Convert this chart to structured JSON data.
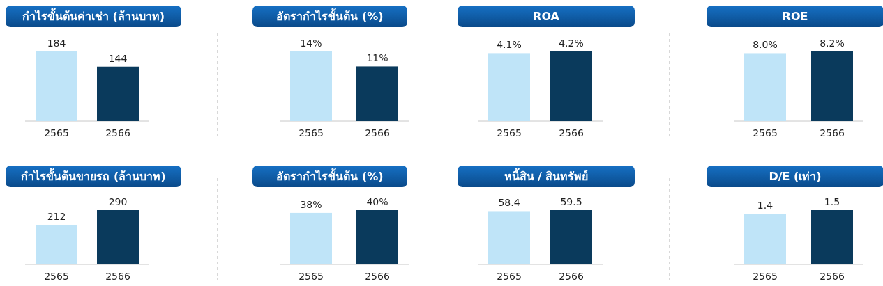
{
  "chart_data": [
    {
      "type": "bar",
      "title": "กำไรขั้นต้นค่าเช่า (ล้านบาท)",
      "categories": [
        "2565",
        "2566"
      ],
      "values": [
        184,
        144
      ],
      "colors": [
        "#bfe4f8",
        "#0a3a5c"
      ],
      "data_labels": true
    },
    {
      "type": "bar",
      "title": "อัตรากำไรขั้นต้น (%)",
      "categories": [
        "2565",
        "2566"
      ],
      "values": [
        14,
        11
      ],
      "colors": [
        "#bfe4f8",
        "#0a3a5c"
      ],
      "value_labels": [
        "14%",
        "11%"
      ]
    },
    {
      "type": "bar",
      "title": "ROA",
      "categories": [
        "2565",
        "2566"
      ],
      "values": [
        4.1,
        4.2
      ],
      "colors": [
        "#bfe4f8",
        "#0a3a5c"
      ],
      "value_labels": [
        "4.1%",
        "4.2%"
      ]
    },
    {
      "type": "bar",
      "title": "ROE",
      "categories": [
        "2565",
        "2566"
      ],
      "values": [
        8.0,
        8.2
      ],
      "colors": [
        "#bfe4f8",
        "#0a3a5c"
      ],
      "value_labels": [
        "8.0%",
        "8.2%"
      ]
    },
    {
      "type": "bar",
      "title": "กำไรขั้นต้นขายรถ (ล้านบาท)",
      "categories": [
        "2565",
        "2566"
      ],
      "values": [
        212,
        290
      ],
      "colors": [
        "#bfe4f8",
        "#0a3a5c"
      ],
      "data_labels": true
    },
    {
      "type": "bar",
      "title": "อัตรากำไรขั้นต้น (%)",
      "categories": [
        "2565",
        "2566"
      ],
      "values": [
        38,
        40
      ],
      "colors": [
        "#bfe4f8",
        "#0a3a5c"
      ],
      "value_labels": [
        "38%",
        "40%"
      ]
    },
    {
      "type": "bar",
      "title": "หนี้สิน / สินทรัพย์",
      "categories": [
        "2565",
        "2566"
      ],
      "values": [
        58.4,
        59.5
      ],
      "colors": [
        "#bfe4f8",
        "#0a3a5c"
      ],
      "data_labels": true
    },
    {
      "type": "bar",
      "title": "D/E (เท่า)",
      "categories": [
        "2565",
        "2566"
      ],
      "values": [
        1.4,
        1.5
      ],
      "colors": [
        "#bfe4f8",
        "#0a3a5c"
      ],
      "data_labels": true
    }
  ]
}
